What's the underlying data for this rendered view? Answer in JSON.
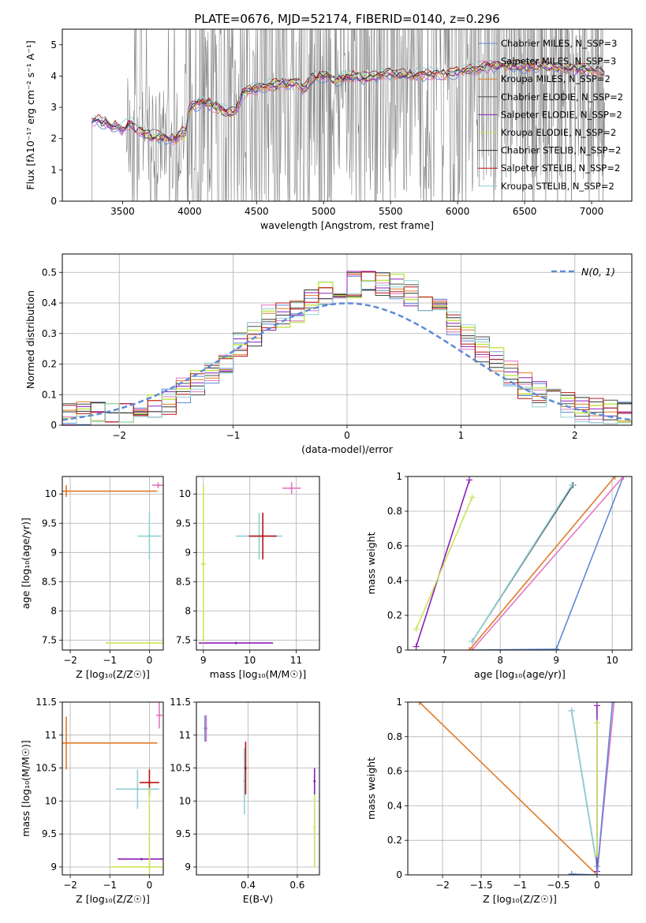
{
  "figure": {
    "title": "PLATE=0676, MJD=52174, FIBERID=0140, z=0.296"
  },
  "colors": {
    "chabrier_miles": "#5f8bd6",
    "salpeter_miles": "#e377c2",
    "kroupa_miles": "#e07b29",
    "chabrier_elodie": "#4d4d4d",
    "salpeter_elodie": "#8b1fb5",
    "kroupa_elodie": "#c8e65a",
    "chabrier_stelib": "#333333",
    "salpeter_stelib": "#b81414",
    "kroupa_stelib": "#8fd1d6",
    "data": "#808080",
    "grid": "#b0b0b0"
  },
  "chart_data": [
    {
      "id": "spectrum",
      "type": "line",
      "xlabel": "wavelength [Angstrom, rest frame]",
      "ylabel": "Flux [fλ10⁻¹⁷ erg cm⁻² s⁻¹ A⁻¹]",
      "xlim": [
        3050,
        7300
      ],
      "ylim": [
        0,
        5.5
      ],
      "xticks": [
        3500,
        4000,
        4500,
        5000,
        5500,
        6000,
        6500,
        7000
      ],
      "yticks": [
        0,
        1,
        2,
        3,
        4,
        5
      ],
      "grid": false,
      "legend": "upper right",
      "legend_entries": [
        {
          "label": "Chabrier MILES, N_SSP=3",
          "color": "#5f8bd6"
        },
        {
          "label": "Salpeter MILES, N_SSP=3",
          "color": "#e377c2"
        },
        {
          "label": "Kroupa MILES, N_SSP=2",
          "color": "#e07b29"
        },
        {
          "label": "Chabrier ELODIE, N_SSP=2",
          "color": "#4d4d4d"
        },
        {
          "label": "Salpeter ELODIE, N_SSP=2",
          "color": "#8b1fb5"
        },
        {
          "label": "Kroupa ELODIE, N_SSP=2",
          "color": "#c8e65a"
        },
        {
          "label": "Chabrier STELIB, N_SSP=2",
          "color": "#333333"
        },
        {
          "label": "Salpeter STELIB, N_SSP=2",
          "color": "#b81414"
        },
        {
          "label": "Kroupa STELIB, N_SSP=2",
          "color": "#8fd1d6"
        }
      ],
      "model_x": [
        3270,
        3300,
        3400,
        3500,
        3560,
        3600,
        3700,
        3800,
        3900,
        3950,
        3960,
        4000,
        4100,
        4200,
        4300,
        4350,
        4400,
        4500,
        4600,
        4700,
        4800,
        4860,
        4900,
        5000,
        5100,
        5200,
        5300,
        5400,
        5500,
        5600,
        5700,
        5800,
        5900,
        6000,
        6100,
        6200,
        6300,
        6400,
        6500,
        6600,
        6700,
        6800,
        6900,
        7000,
        7100
      ],
      "model_y": [
        2.55,
        2.6,
        2.45,
        2.3,
        2.5,
        2.3,
        2.1,
        2.05,
        2.0,
        2.2,
        2.0,
        3.0,
        3.2,
        3.0,
        2.8,
        2.9,
        3.5,
        3.6,
        3.7,
        3.75,
        3.8,
        3.6,
        3.9,
        4.0,
        3.9,
        4.0,
        3.95,
        4.0,
        4.1,
        4.05,
        4.0,
        4.1,
        4.05,
        4.15,
        4.2,
        4.3,
        4.35,
        4.35,
        4.3,
        4.35,
        4.3,
        4.25,
        4.2,
        4.2,
        4.1
      ]
    },
    {
      "id": "residuals",
      "type": "bar",
      "xlabel": "(data-model)/error",
      "ylabel": "Normed distribution",
      "xlim": [
        -2.5,
        2.5
      ],
      "ylim": [
        0,
        0.56
      ],
      "xticks": [
        -2,
        -1,
        0,
        1,
        2
      ],
      "yticks": [
        0.0,
        0.1,
        0.2,
        0.3,
        0.4,
        0.5
      ],
      "grid": true,
      "legend": "upper right",
      "legend_label": "N(0, 1)",
      "hist_base": [
        0.03,
        0.035,
        0.04,
        0.045,
        0.05,
        0.06,
        0.07,
        0.08,
        0.11,
        0.14,
        0.17,
        0.21,
        0.26,
        0.3,
        0.35,
        0.36,
        0.38,
        0.4,
        0.43,
        0.45,
        0.46,
        0.47,
        0.46,
        0.45,
        0.43,
        0.4,
        0.37,
        0.33,
        0.29,
        0.25,
        0.21,
        0.17,
        0.13,
        0.1,
        0.08,
        0.065,
        0.055,
        0.05,
        0.045,
        0.04
      ]
    },
    {
      "id": "age-vs-z",
      "type": "scatter",
      "xlabel": "Z [log₁₀(Z/Z☉)]",
      "ylabel": "age  [log₁₀(age/yr)]",
      "xlim": [
        -2.2,
        0.35
      ],
      "ylim": [
        7.33,
        10.3
      ],
      "xticks": [
        -2,
        -1,
        0
      ],
      "yticks": [
        7.5,
        8.0,
        8.5,
        9.0,
        9.5,
        10.0
      ],
      "grid": true,
      "points": [
        {
          "x": 0.0,
          "y": 9.28,
          "xerr": 0.3,
          "yerr": 0.4,
          "color": "#8fd1d6"
        },
        {
          "x": 0.0,
          "y": 7.45,
          "xerr": 1.1,
          "yerr": 0.02,
          "color": "#c8e65a"
        },
        {
          "x": -2.1,
          "y": 10.05,
          "xerr": 2.3,
          "yerr": 0.1,
          "color": "#e07b29"
        },
        {
          "x": 0.22,
          "y": 10.15,
          "xerr": 0.15,
          "yerr": 0.05,
          "color": "#e377c2"
        }
      ]
    },
    {
      "id": "age-vs-mass",
      "type": "scatter",
      "xlabel": "mass [log₁₀(M/M☉)]",
      "ylabel": "",
      "xlim": [
        8.85,
        11.5
      ],
      "ylim": [
        7.33,
        10.3
      ],
      "xticks": [
        9,
        10,
        11
      ],
      "yticks": [
        7.5,
        8.0,
        8.5,
        9.0,
        9.5,
        10.0
      ],
      "grid": true,
      "points": [
        {
          "x": 10.2,
          "y": 9.28,
          "xerr": 0.5,
          "yerr": 0.4,
          "color": "#8fd1d6"
        },
        {
          "x": 10.28,
          "y": 9.28,
          "xerr": 0.3,
          "yerr": 0.4,
          "color": "#b81414"
        },
        {
          "x": 9.7,
          "y": 7.45,
          "xerr": 0.8,
          "yerr": 0.02,
          "color": "#8b1fb5"
        },
        {
          "x": 9.0,
          "y": 8.8,
          "xerr": 0.05,
          "yerr": 1.35,
          "color": "#c8e65a"
        },
        {
          "x": 10.9,
          "y": 10.1,
          "xerr": 0.2,
          "yerr": 0.1,
          "color": "#e377c2"
        }
      ]
    },
    {
      "id": "weight-vs-age",
      "type": "line",
      "xlabel": "age  [log₁₀(age/yr)]",
      "ylabel": "mass weight",
      "xlim": [
        6.35,
        10.35
      ],
      "ylim": [
        0,
        1.0
      ],
      "xticks": [
        7,
        8,
        9,
        10
      ],
      "yticks": [
        0.0,
        0.2,
        0.4,
        0.6,
        0.8,
        1.0
      ],
      "grid": true,
      "series": [
        {
          "x": [
            7.5,
            9.0,
            10.2
          ],
          "y": [
            0.0,
            0.005,
            1.0
          ],
          "color": "#5f8bd6"
        },
        {
          "x": [
            7.5,
            10.2
          ],
          "y": [
            0.0,
            1.0
          ],
          "color": "#e377c2"
        },
        {
          "x": [
            7.45,
            10.05
          ],
          "y": [
            0.0,
            1.0
          ],
          "color": "#e07b29"
        },
        {
          "x": [
            6.5,
            7.45
          ],
          "y": [
            0.02,
            0.98
          ],
          "color": "#8b1fb5"
        },
        {
          "x": [
            6.5,
            7.5
          ],
          "y": [
            0.12,
            0.88
          ],
          "color": "#c8e65a"
        },
        {
          "x": [
            7.5,
            9.3
          ],
          "y": [
            0.05,
            0.95
          ],
          "color": "#4d4d4d"
        },
        {
          "x": [
            7.5,
            9.28
          ],
          "y": [
            0.05,
            0.95
          ],
          "color": "#8fd1d6"
        }
      ]
    },
    {
      "id": "mass-vs-z",
      "type": "scatter",
      "xlabel": "Z [log₁₀(Z/Z☉)]",
      "ylabel": "mass [log₁₀(M/M☉)]",
      "xlim": [
        -2.2,
        0.35
      ],
      "ylim": [
        8.88,
        11.5
      ],
      "xticks": [
        -2,
        -1,
        0
      ],
      "yticks": [
        9.0,
        9.5,
        10.0,
        10.5,
        11.0,
        11.5
      ],
      "grid": true,
      "points": [
        {
          "x": -0.3,
          "y": 10.18,
          "xerr": 0.55,
          "yerr": 0.3,
          "color": "#8fd1d6"
        },
        {
          "x": -2.1,
          "y": 10.88,
          "xerr": 2.3,
          "yerr": 0.4,
          "color": "#e07b29"
        },
        {
          "x": 0.0,
          "y": 10.28,
          "xerr": 0.25,
          "yerr": 0.2,
          "color": "#b81414"
        },
        {
          "x": -0.2,
          "y": 9.12,
          "xerr": 0.6,
          "yerr": 0.01,
          "color": "#8b1fb5"
        },
        {
          "x": 0.0,
          "y": 9.0,
          "xerr": 1.0,
          "yerr": 1.2,
          "color": "#c8e65a"
        },
        {
          "x": 0.25,
          "y": 11.3,
          "xerr": 0.08,
          "yerr": 0.2,
          "color": "#e377c2"
        }
      ]
    },
    {
      "id": "mass-vs-ebv",
      "type": "scatter",
      "xlabel": "E(B-V)",
      "ylabel": "",
      "xlim": [
        0.19,
        0.69
      ],
      "ylim": [
        8.88,
        11.5
      ],
      "xticks": [
        0.4,
        0.6
      ],
      "yticks": [
        9.0,
        9.5,
        10.0,
        10.5,
        11.0,
        11.5
      ],
      "grid": true,
      "points": [
        {
          "x": 0.385,
          "y": 10.3,
          "yerr": 0.5,
          "color": "#8fd1d6"
        },
        {
          "x": 0.39,
          "y": 10.5,
          "yerr": 0.4,
          "color": "#b81414"
        },
        {
          "x": 0.67,
          "y": 9.6,
          "yerr": 0.6,
          "color": "#c8e65a"
        },
        {
          "x": 0.67,
          "y": 10.3,
          "yerr": 0.2,
          "color": "#8b1fb5"
        },
        {
          "x": 0.23,
          "y": 11.1,
          "yerr": 0.2,
          "color": "#e377c2"
        },
        {
          "x": 0.225,
          "y": 11.1,
          "yerr": 0.2,
          "color": "#5f8bd6"
        }
      ]
    },
    {
      "id": "weight-vs-z",
      "type": "line",
      "xlabel": "Z [log₁₀(Z/Z☉)]",
      "ylabel": "mass weight",
      "xlim": [
        -2.45,
        0.45
      ],
      "ylim": [
        0,
        1.0
      ],
      "xticks": [
        -2.0,
        -1.5,
        -1.0,
        -0.5,
        0.0
      ],
      "yticks": [
        0.0,
        0.2,
        0.4,
        0.6,
        0.8,
        1.0
      ],
      "grid": true,
      "series": [
        {
          "x": [
            -2.3,
            0.0
          ],
          "y": [
            1.0,
            0.0
          ],
          "color": "#e07b29"
        },
        {
          "x": [
            -0.33,
            0.0
          ],
          "y": [
            0.95,
            0.05
          ],
          "color": "#4d4d4d"
        },
        {
          "x": [
            -0.33,
            0.0
          ],
          "y": [
            0.95,
            0.05
          ],
          "color": "#8fd1d6"
        },
        {
          "x": [
            0.0,
            0.0
          ],
          "y": [
            0.02,
            0.98
          ],
          "color": "#8b1fb5"
        },
        {
          "x": [
            0.0,
            0.0
          ],
          "y": [
            0.12,
            0.88
          ],
          "color": "#c8e65a"
        },
        {
          "x": [
            0.0,
            0.22
          ],
          "y": [
            0.0,
            1.0
          ],
          "color": "#e377c2"
        },
        {
          "x": [
            -0.33,
            0.0,
            0.2
          ],
          "y": [
            0.005,
            0.0,
            1.0
          ],
          "color": "#5f8bd6"
        }
      ]
    }
  ]
}
